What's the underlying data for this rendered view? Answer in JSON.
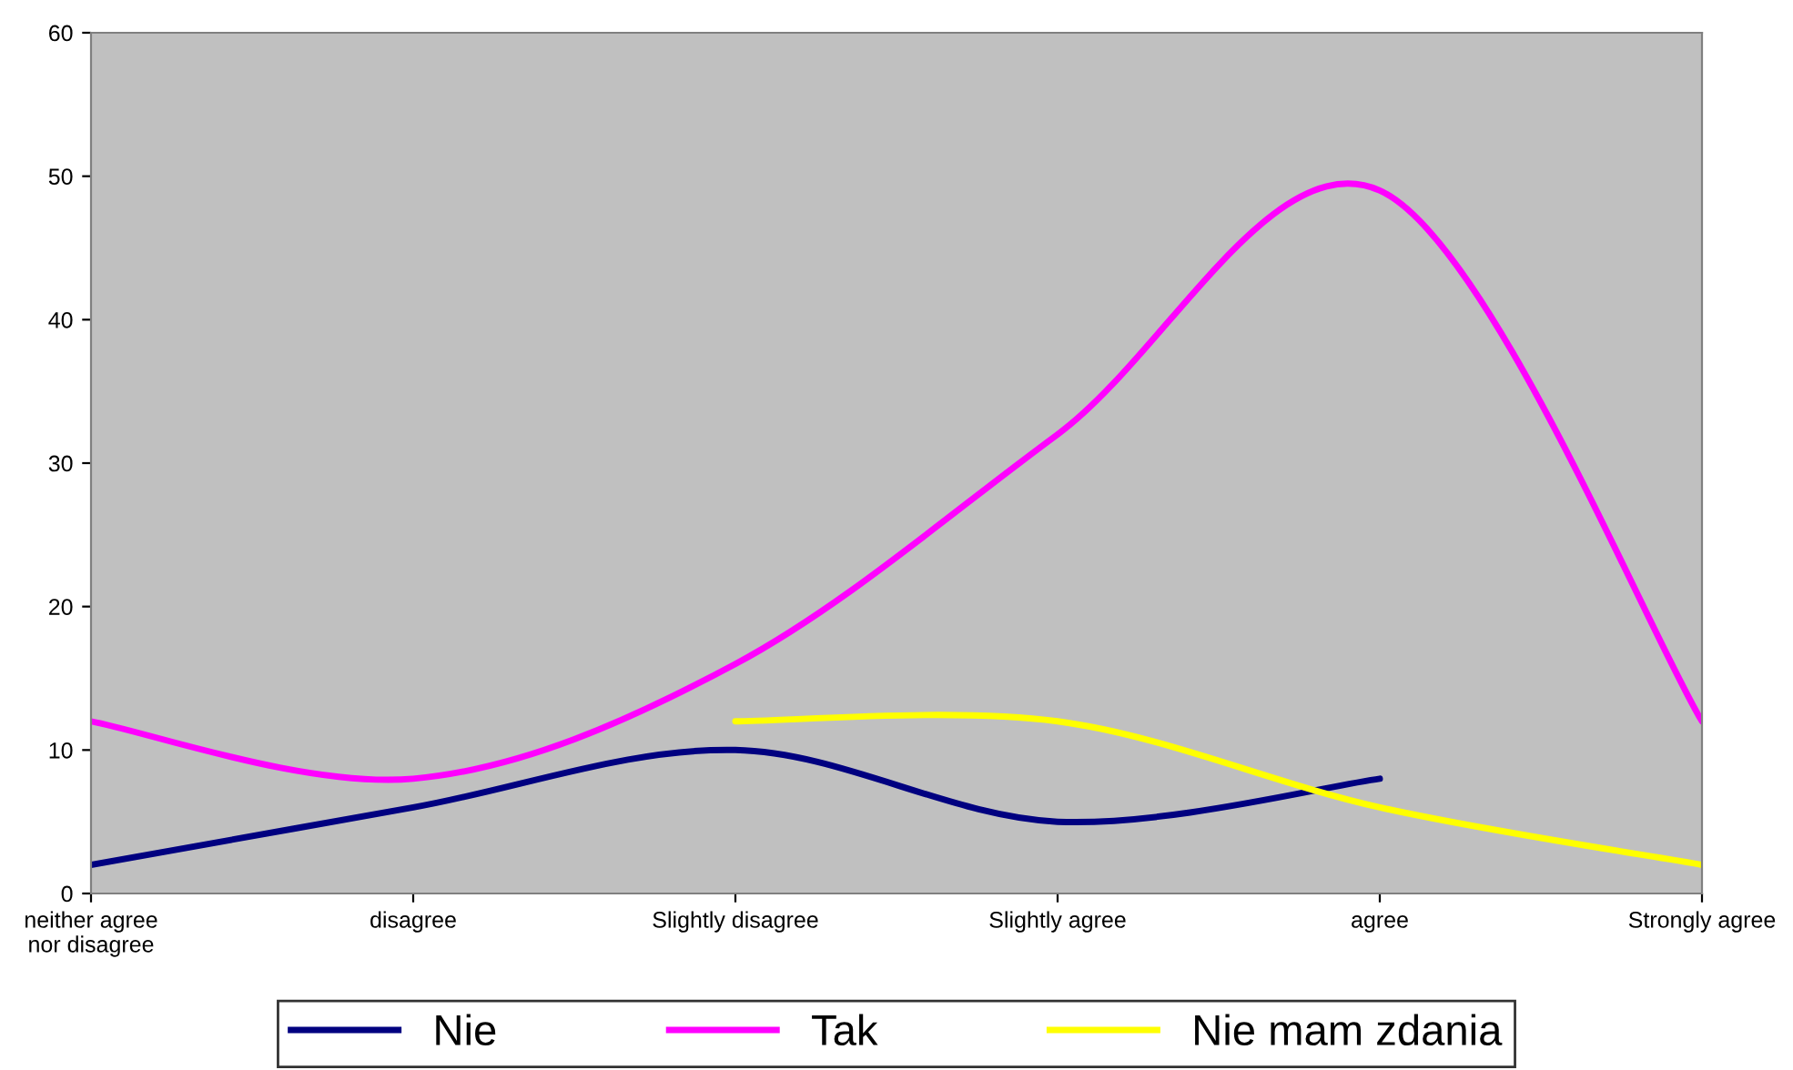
{
  "chart_data": {
    "type": "line",
    "categories": [
      "neither agree\nnor disagree",
      "disagree",
      "Slightly disagree",
      "Slightly agree",
      "agree",
      "Strongly agree"
    ],
    "series": [
      {
        "name": "Nie",
        "color": "#000080",
        "values": [
          2,
          6,
          10,
          5,
          8,
          null
        ]
      },
      {
        "name": "Tak",
        "color": "#ff00ff",
        "values": [
          12,
          8,
          16,
          32,
          49,
          12
        ]
      },
      {
        "name": "Nie mam zdania",
        "color": "#ffff00",
        "values": [
          null,
          null,
          12,
          12,
          6,
          2
        ]
      }
    ],
    "ylim": [
      0,
      60
    ],
    "yticks": [
      0,
      10,
      20,
      30,
      40,
      50,
      60
    ],
    "grid": false,
    "legend": "bottom",
    "marker": "none",
    "line_style": "solid"
  }
}
